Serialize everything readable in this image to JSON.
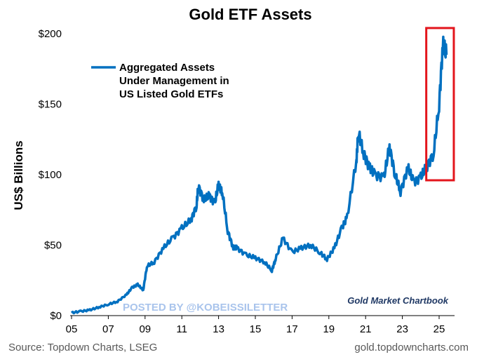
{
  "chart_data": {
    "type": "line",
    "title": "Gold ETF Assets",
    "ylabel": "US$ Billions",
    "xlabel": "",
    "ylim": [
      0,
      200
    ],
    "xlim": [
      2005,
      2025.9
    ],
    "y_ticks": [
      0,
      50,
      100,
      150,
      200
    ],
    "y_tick_labels": [
      "$0",
      "$50",
      "$100",
      "$150",
      "$200"
    ],
    "x_ticks": [
      2005,
      2007,
      2009,
      2011,
      2013,
      2015,
      2017,
      2019,
      2021,
      2023,
      2025
    ],
    "x_tick_labels": [
      "05",
      "07",
      "09",
      "11",
      "13",
      "15",
      "17",
      "19",
      "21",
      "23",
      "25"
    ],
    "grid": false,
    "legend_position": "top-left",
    "series": [
      {
        "name": "Aggregated Assets Under Management in US Listed Gold ETFs",
        "legend_lines": [
          "Aggregated Assets",
          "Under Management in",
          "US Listed Gold ETFs"
        ],
        "color": "#0070c0",
        "x": [
          2005.0,
          2005.5,
          2006.0,
          2006.5,
          2007.0,
          2007.5,
          2008.0,
          2008.3,
          2008.6,
          2008.9,
          2009.1,
          2009.5,
          2010.0,
          2010.5,
          2011.0,
          2011.5,
          2011.8,
          2011.9,
          2012.2,
          2012.5,
          2012.8,
          2013.0,
          2013.2,
          2013.5,
          2013.8,
          2014.0,
          2014.5,
          2015.0,
          2015.5,
          2015.9,
          2016.1,
          2016.5,
          2017.0,
          2017.5,
          2018.0,
          2018.5,
          2018.9,
          2019.3,
          2019.7,
          2020.0,
          2020.5,
          2020.6,
          2020.9,
          2021.2,
          2021.5,
          2022.0,
          2022.3,
          2022.6,
          2022.9,
          2023.3,
          2023.6,
          2024.0,
          2024.3,
          2024.7,
          2025.0,
          2025.2,
          2025.4
        ],
        "y": [
          2,
          3,
          4,
          6,
          8,
          10,
          15,
          20,
          22,
          18,
          35,
          38,
          48,
          55,
          62,
          68,
          78,
          92,
          82,
          85,
          80,
          93,
          88,
          60,
          48,
          48,
          43,
          41,
          38,
          32,
          40,
          55,
          45,
          48,
          50,
          45,
          40,
          48,
          62,
          70,
          110,
          130,
          115,
          105,
          100,
          98,
          120,
          100,
          88,
          105,
          95,
          98,
          105,
          115,
          150,
          192,
          185
        ]
      }
    ],
    "annotations": {
      "highlight_box": {
        "x_range": [
          2024.3,
          2025.8
        ],
        "y_range": [
          96,
          204
        ],
        "color": "#e3151c"
      },
      "watermark": "POSTED BY @KOBEISSILETTER",
      "brand": "Gold Market Chartbook"
    }
  },
  "footer": {
    "source": "Source: Topdown Charts, LSEG",
    "site": "gold.topdowncharts.com"
  }
}
